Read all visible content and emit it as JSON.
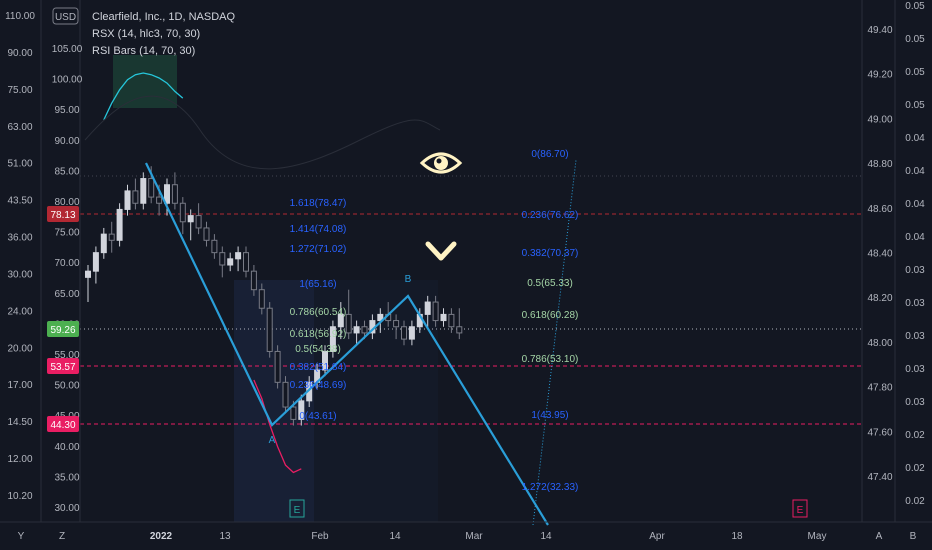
{
  "header": {
    "title": "Clearfield, Inc., 1D, NASDAQ",
    "indicators": [
      "RSX (14, hlc3, 70, 30)",
      "RSI Bars (14, 70, 30)"
    ],
    "currency": "USD"
  },
  "colors": {
    "background": "#131722",
    "up_candle": "#d1d4dc",
    "down_candle": "#787b86",
    "abcd_line": "#2a9ed8",
    "rsx_line": "#26c6da",
    "rsx_low": "#e91e63",
    "red_tag": "#b22833",
    "pink_tag": "#e91e63",
    "green_tag": "#4caf50",
    "fib_text_blue": "#2962ff",
    "fib_text_green": "#a5d6a7",
    "icon_cream": "#fff3c4"
  },
  "left_axis_outer": {
    "ticks": [
      "110.00",
      "90.00",
      "75.00",
      "63.00",
      "51.00",
      "43.50",
      "36.00",
      "30.00",
      "24.00",
      "20.00",
      "17.00",
      "14.50",
      "12.00",
      "10.20"
    ]
  },
  "left_axis_inner": {
    "ticks": [
      "105.00",
      "100.00",
      "95.00",
      "90.00",
      "85.00",
      "80.00",
      "75.00",
      "70.00",
      "65.00",
      "60.00",
      "55.00",
      "50.00",
      "45.00",
      "40.00",
      "35.00",
      "30.00"
    ]
  },
  "right_axis_inner": {
    "ticks": [
      "49.40",
      "49.20",
      "49.00",
      "48.80",
      "48.60",
      "48.40",
      "48.20",
      "48.00",
      "47.80",
      "47.60",
      "47.40"
    ]
  },
  "right_axis_outer": {
    "ticks": [
      "0.05",
      "0.05",
      "0.05",
      "0.05",
      "0.04",
      "0.04",
      "0.04",
      "0.04",
      "0.03",
      "0.03",
      "0.03",
      "0.03",
      "0.03",
      "0.02",
      "0.02",
      "0.02"
    ]
  },
  "price_tags": [
    {
      "label": "78.13",
      "kind": "red_tag"
    },
    {
      "label": "59.26",
      "kind": "green_tag"
    },
    {
      "label": "53.57",
      "kind": "pink_tag"
    },
    {
      "label": "44.30",
      "kind": "pink_tag"
    }
  ],
  "x_axis": {
    "ticks": [
      "2022",
      "13",
      "Feb",
      "14",
      "Mar",
      "14",
      "Apr",
      "18",
      "May"
    ],
    "bold_index": 0
  },
  "corner_labels": {
    "left_bottom": "Y",
    "left_bottom_2": "Z",
    "right_bottom": "A",
    "right_bottom_2": "B"
  },
  "pattern_points": {
    "a_label": "A",
    "b_label": "B"
  },
  "fib_left": [
    {
      "text": "1.618(78.47)",
      "color": "fib_text_blue"
    },
    {
      "text": "1.414(74.08)",
      "color": "fib_text_blue"
    },
    {
      "text": "1.272(71.02)",
      "color": "fib_text_blue"
    },
    {
      "text": "1(65.16)",
      "color": "fib_text_blue"
    },
    {
      "text": "0.786(60.54)",
      "color": "fib_text_green"
    },
    {
      "text": "0.618(56.92)",
      "color": "fib_text_green"
    },
    {
      "text": "0.5(54.38)",
      "color": "fib_text_green"
    },
    {
      "text": "0.382(51.84)",
      "color": "fib_text_blue"
    },
    {
      "text": "0.236(48.69)",
      "color": "fib_text_blue"
    },
    {
      "text": "0(43.61)",
      "color": "fib_text_blue"
    }
  ],
  "fib_right": [
    {
      "text": "0(86.70)",
      "color": "fib_text_blue"
    },
    {
      "text": "0.236(76.62)",
      "color": "fib_text_blue"
    },
    {
      "text": "0.382(70.37)",
      "color": "fib_text_blue"
    },
    {
      "text": "0.5(65.33)",
      "color": "fib_text_green"
    },
    {
      "text": "0.618(60.28)",
      "color": "fib_text_green"
    },
    {
      "text": "0.786(53.10)",
      "color": "fib_text_green"
    },
    {
      "text": "1(43.95)",
      "color": "fib_text_blue"
    },
    {
      "text": "1.272(32.33)",
      "color": "fib_text_blue"
    }
  ],
  "icons": [
    "eye-icon",
    "chevron-down-icon",
    "earnings-icon"
  ],
  "earnings_label": "E",
  "chart_data": {
    "type": "candlestick",
    "title": "Clearfield, Inc., 1D, NASDAQ",
    "y_range": [
      30,
      110
    ],
    "candles": [
      {
        "o": 68,
        "h": 70,
        "l": 64,
        "c": 69
      },
      {
        "o": 69,
        "h": 73,
        "l": 67,
        "c": 72
      },
      {
        "o": 72,
        "h": 76,
        "l": 71,
        "c": 75
      },
      {
        "o": 75,
        "h": 77,
        "l": 72,
        "c": 74
      },
      {
        "o": 74,
        "h": 80,
        "l": 73,
        "c": 79
      },
      {
        "o": 79,
        "h": 83,
        "l": 78,
        "c": 82
      },
      {
        "o": 82,
        "h": 84,
        "l": 79,
        "c": 80
      },
      {
        "o": 80,
        "h": 85,
        "l": 79,
        "c": 84
      },
      {
        "o": 84,
        "h": 86,
        "l": 80,
        "c": 81
      },
      {
        "o": 81,
        "h": 83,
        "l": 78,
        "c": 80
      },
      {
        "o": 80,
        "h": 84,
        "l": 78,
        "c": 83
      },
      {
        "o": 83,
        "h": 85,
        "l": 79,
        "c": 80
      },
      {
        "o": 80,
        "h": 81,
        "l": 75,
        "c": 77
      },
      {
        "o": 77,
        "h": 79,
        "l": 74,
        "c": 78
      },
      {
        "o": 78,
        "h": 80,
        "l": 75,
        "c": 76
      },
      {
        "o": 76,
        "h": 77,
        "l": 73,
        "c": 74
      },
      {
        "o": 74,
        "h": 75,
        "l": 71,
        "c": 72
      },
      {
        "o": 72,
        "h": 73,
        "l": 68,
        "c": 70
      },
      {
        "o": 70,
        "h": 72,
        "l": 69,
        "c": 71
      },
      {
        "o": 71,
        "h": 73,
        "l": 69,
        "c": 72
      },
      {
        "o": 72,
        "h": 73,
        "l": 68,
        "c": 69
      },
      {
        "o": 69,
        "h": 70,
        "l": 65,
        "c": 66
      },
      {
        "o": 66,
        "h": 67,
        "l": 62,
        "c": 63
      },
      {
        "o": 63,
        "h": 64,
        "l": 55,
        "c": 56
      },
      {
        "o": 56,
        "h": 57,
        "l": 50,
        "c": 51
      },
      {
        "o": 51,
        "h": 52,
        "l": 46,
        "c": 47
      },
      {
        "o": 47,
        "h": 48,
        "l": 44,
        "c": 45
      },
      {
        "o": 45,
        "h": 49,
        "l": 44,
        "c": 48
      },
      {
        "o": 48,
        "h": 52,
        "l": 47,
        "c": 51
      },
      {
        "o": 51,
        "h": 54,
        "l": 50,
        "c": 53
      },
      {
        "o": 53,
        "h": 57,
        "l": 52,
        "c": 56
      },
      {
        "o": 56,
        "h": 61,
        "l": 55,
        "c": 60
      },
      {
        "o": 60,
        "h": 64,
        "l": 58,
        "c": 62
      },
      {
        "o": 62,
        "h": 66,
        "l": 58,
        "c": 59
      },
      {
        "o": 59,
        "h": 61,
        "l": 57,
        "c": 60
      },
      {
        "o": 60,
        "h": 61,
        "l": 58,
        "c": 59
      },
      {
        "o": 59,
        "h": 62,
        "l": 58,
        "c": 61
      },
      {
        "o": 61,
        "h": 63,
        "l": 59,
        "c": 62
      },
      {
        "o": 62,
        "h": 64,
        "l": 60,
        "c": 61
      },
      {
        "o": 61,
        "h": 62,
        "l": 58,
        "c": 60
      },
      {
        "o": 60,
        "h": 61,
        "l": 57,
        "c": 58
      },
      {
        "o": 58,
        "h": 61,
        "l": 57,
        "c": 60
      },
      {
        "o": 60,
        "h": 63,
        "l": 59,
        "c": 62
      },
      {
        "o": 62,
        "h": 65,
        "l": 60,
        "c": 64
      },
      {
        "o": 64,
        "h": 65,
        "l": 60,
        "c": 61
      },
      {
        "o": 61,
        "h": 63,
        "l": 60,
        "c": 62
      },
      {
        "o": 62,
        "h": 63,
        "l": 59,
        "c": 60
      },
      {
        "o": 60,
        "h": 63,
        "l": 58,
        "c": 59
      }
    ],
    "abcd": [
      {
        "i": 7,
        "price": 86.7
      },
      {
        "i": 26,
        "price": 43.6
      },
      {
        "i": 43,
        "price": 65.2
      },
      {
        "i": 57,
        "price": 30.0
      }
    ],
    "rsx_segments": [
      {
        "from_i": 2,
        "to_i": 12,
        "values": [
          72,
          82,
          90,
          96,
          99,
          100,
          99,
          97,
          94,
          89,
          85
        ]
      },
      {
        "from_i": 21,
        "to_i": 27,
        "values": [
          60,
          55,
          48,
          42,
          37,
          35,
          36
        ]
      }
    ],
    "horizontal_levels": [
      {
        "price": 78.13,
        "style": "red_tag"
      },
      {
        "price": 59.26,
        "style": "green_tag"
      },
      {
        "price": 53.57,
        "style": "pink_tag"
      },
      {
        "price": 44.3,
        "style": "pink_tag"
      }
    ]
  }
}
